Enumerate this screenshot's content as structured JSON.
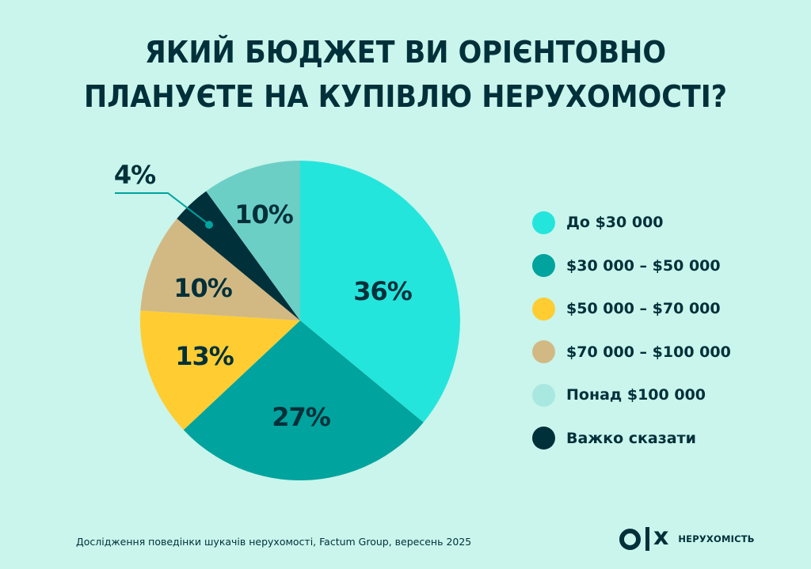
{
  "title": {
    "line1": "ЯКИЙ БЮДЖЕТ ВИ ОРІЄНТОВНО",
    "line2": "ПЛАНУЄТЕ НА КУПІВЛЮ НЕРУХОМОСТІ?"
  },
  "chart_data": {
    "type": "pie",
    "title": "Який бюджет ви орієнтовно плануєте на купівлю нерухомості?",
    "categories": [
      "До $30 000",
      "$30 000 – $50 000",
      "$50 000 – $70 000",
      "$70 000 – $100 000",
      "Понад $100 000",
      "Важко сказати"
    ],
    "values": [
      36,
      27,
      13,
      10,
      10,
      4
    ],
    "unit": "%",
    "legend_position": "right",
    "start_angle": "12 o'clock, clockwise order: 36, 27, 13, 10, 4, 10"
  },
  "slices": [
    {
      "label": "36%",
      "value": 36,
      "color": "#24e5dc"
    },
    {
      "label": "27%",
      "value": 27,
      "color": "#00a39d"
    },
    {
      "label": "13%",
      "value": 13,
      "color": "#ffcd32"
    },
    {
      "label": "10%",
      "value": 10,
      "color": "#d2b983"
    },
    {
      "label": "4%",
      "value": 4,
      "color": "#00303a"
    },
    {
      "label": "10%",
      "value": 10,
      "color": "#6ccfc6"
    }
  ],
  "legend": [
    {
      "label": "До $30 000",
      "color": "#24e5dc"
    },
    {
      "label": "$30 000 – $50 000",
      "color": "#00a39d"
    },
    {
      "label": "$50 000 – $70 000",
      "color": "#ffcd32"
    },
    {
      "label": "$70 000 – $100 000",
      "color": "#d2b983"
    },
    {
      "label": "Понад $100 000",
      "color": "#a8e8e0"
    },
    {
      "label": "Важко сказати",
      "color": "#00303a"
    }
  ],
  "footer": {
    "source": "Дослідження поведінки шукачів нерухомості, Factum Group, вересень 2025"
  },
  "logo": {
    "x_mark": "x",
    "text": "НЕРУХОМІСТЬ"
  }
}
